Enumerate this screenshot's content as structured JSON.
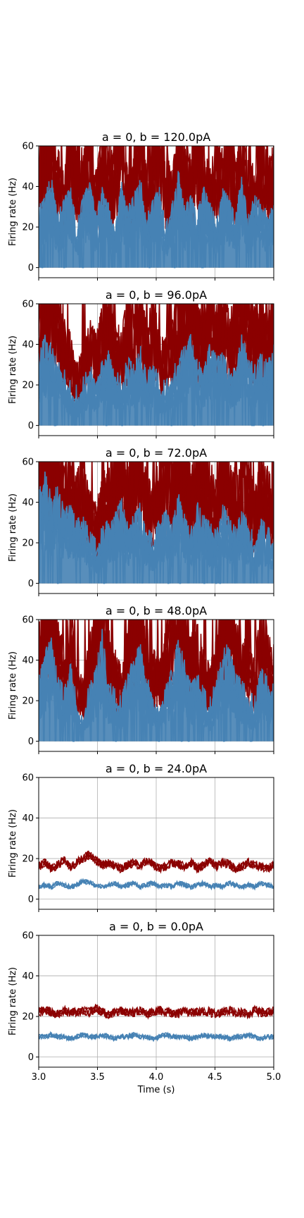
{
  "chart_data": [
    {
      "type": "line",
      "title": "a = 0, b = 120.0pA",
      "ylabel": "Firing rate (Hz)",
      "xlabel": "",
      "xlim": [
        3.0,
        5.0
      ],
      "ylim": [
        -5,
        60
      ],
      "yticks": [
        "0",
        "20",
        "40",
        "60"
      ],
      "grid": true,
      "series": [
        {
          "color": "#8b0000",
          "values": [
            35,
            45,
            60,
            40,
            30,
            55,
            42,
            38,
            60,
            32,
            48,
            36,
            44,
            60,
            30,
            40,
            52,
            34,
            46,
            60,
            38,
            30,
            50,
            42,
            36,
            58,
            40,
            32,
            44,
            38,
            60,
            34,
            46,
            40,
            30,
            52,
            36,
            42
          ]
        },
        {
          "color": "#4682b4",
          "values": [
            18,
            25,
            30,
            15,
            22,
            28,
            10,
            24,
            30,
            16,
            26,
            20,
            12,
            28,
            18,
            24,
            30,
            14,
            22,
            26,
            10,
            20,
            32,
            18,
            24,
            16,
            28,
            20,
            12,
            26,
            22,
            18,
            30,
            14,
            24,
            20,
            16,
            22
          ]
        }
      ]
    },
    {
      "type": "line",
      "title": "a = 0, b = 96.0pA",
      "ylabel": "Firing rate (Hz)",
      "xlabel": "",
      "xlim": [
        3.0,
        5.0
      ],
      "ylim": [
        -5,
        60
      ],
      "yticks": [
        "0",
        "20",
        "40",
        "60"
      ],
      "grid": true,
      "series": [
        {
          "color": "#8b0000",
          "values": [
            40,
            55,
            60,
            45,
            35,
            30,
            20,
            25,
            35,
            30,
            40,
            48,
            36,
            30,
            44,
            38,
            52,
            34,
            42,
            30,
            28,
            36,
            46,
            50,
            60,
            42,
            38,
            55,
            40,
            48,
            36,
            44,
            60,
            42,
            38,
            46,
            40,
            50
          ]
        },
        {
          "color": "#4682b4",
          "values": [
            24,
            30,
            26,
            20,
            16,
            10,
            8,
            12,
            18,
            14,
            20,
            24,
            16,
            12,
            22,
            18,
            26,
            14,
            20,
            12,
            10,
            16,
            22,
            26,
            30,
            20,
            18,
            28,
            22,
            24,
            16,
            20,
            30,
            22,
            18,
            24,
            20,
            26
          ]
        }
      ]
    },
    {
      "type": "line",
      "title": "a = 0, b = 72.0pA",
      "ylabel": "Firing rate (Hz)",
      "xlabel": "",
      "xlim": [
        3.0,
        5.0
      ],
      "ylim": [
        -5,
        60
      ],
      "yticks": [
        "0",
        "20",
        "40",
        "60"
      ],
      "grid": true,
      "series": [
        {
          "color": "#8b0000",
          "values": [
            50,
            60,
            45,
            55,
            40,
            48,
            36,
            44,
            30,
            26,
            34,
            40,
            46,
            52,
            38,
            44,
            50,
            36,
            30,
            42,
            48,
            40,
            56,
            44,
            38,
            50,
            46,
            40,
            34,
            52,
            42,
            36,
            48,
            40,
            30,
            44,
            38,
            34
          ]
        },
        {
          "color": "#4682b4",
          "values": [
            30,
            36,
            28,
            32,
            24,
            26,
            20,
            22,
            14,
            10,
            16,
            20,
            24,
            28,
            18,
            22,
            26,
            16,
            12,
            20,
            24,
            18,
            30,
            22,
            16,
            26,
            22,
            18,
            14,
            28,
            20,
            16,
            24,
            18,
            12,
            20,
            16,
            14
          ]
        }
      ]
    },
    {
      "type": "line",
      "title": "a = 0, b = 48.0pA",
      "ylabel": "Firing rate (Hz)",
      "xlabel": "",
      "xlim": [
        3.0,
        5.0
      ],
      "ylim": [
        -5,
        60
      ],
      "yticks": [
        "0",
        "20",
        "40",
        "60"
      ],
      "grid": true,
      "series": [
        {
          "color": "#8b0000",
          "values": [
            38,
            52,
            60,
            40,
            30,
            46,
            26,
            20,
            34,
            44,
            60,
            36,
            30,
            24,
            42,
            50,
            56,
            38,
            30,
            26,
            36,
            44,
            58,
            48,
            34,
            40,
            30,
            24,
            38,
            52,
            60,
            42,
            36,
            30,
            26,
            44,
            38,
            32
          ]
        },
        {
          "color": "#4682b4",
          "values": [
            20,
            30,
            34,
            22,
            14,
            26,
            10,
            8,
            16,
            24,
            36,
            18,
            14,
            10,
            22,
            28,
            32,
            20,
            14,
            10,
            18,
            24,
            34,
            26,
            16,
            22,
            14,
            10,
            20,
            30,
            34,
            22,
            18,
            14,
            10,
            24,
            20,
            16
          ]
        }
      ]
    },
    {
      "type": "line",
      "title": "a = 0, b = 24.0pA",
      "ylabel": "Firing rate (Hz)",
      "xlabel": "",
      "xlim": [
        3.0,
        5.0
      ],
      "ylim": [
        -5,
        60
      ],
      "yticks": [
        "0",
        "20",
        "40",
        "60"
      ],
      "grid": true,
      "series": [
        {
          "color": "#8b0000",
          "values": [
            16,
            18,
            15,
            17,
            19,
            16,
            18,
            20,
            22,
            19,
            17,
            18,
            16,
            15,
            17,
            18,
            16,
            19,
            17,
            15,
            16,
            18,
            17,
            16,
            18,
            15,
            17,
            19,
            16,
            18,
            17,
            15,
            16,
            18,
            17,
            16,
            15,
            17
          ]
        },
        {
          "color": "#4682b4",
          "values": [
            6,
            7,
            6,
            8,
            7,
            6,
            7,
            9,
            8,
            7,
            6,
            7,
            8,
            6,
            7,
            8,
            6,
            7,
            8,
            6,
            7,
            6,
            8,
            7,
            6,
            7,
            8,
            6,
            7,
            6,
            8,
            7,
            6,
            7,
            6,
            8,
            7,
            6
          ]
        }
      ]
    },
    {
      "type": "line",
      "title": "a = 0, b = 0.0pA",
      "ylabel": "Firing rate (Hz)",
      "xlabel": "Time (s)",
      "xlim": [
        3.0,
        5.0
      ],
      "ylim": [
        -5,
        60
      ],
      "yticks": [
        "0",
        "20",
        "40",
        "60"
      ],
      "xticks": [
        "3.0",
        "3.5",
        "4.0",
        "4.5",
        "5.0"
      ],
      "grid": true,
      "series": [
        {
          "color": "#8b0000",
          "values": [
            22,
            23,
            22,
            21,
            23,
            22,
            22,
            23,
            22,
            24,
            22,
            21,
            22,
            23,
            22,
            22,
            23,
            21,
            22,
            23,
            22,
            22,
            21,
            23,
            22,
            22,
            23,
            22,
            21,
            22,
            23,
            22,
            22,
            21,
            23,
            22,
            22,
            23
          ]
        },
        {
          "color": "#4682b4",
          "values": [
            10,
            10,
            11,
            10,
            10,
            9,
            10,
            11,
            10,
            10,
            11,
            10,
            9,
            10,
            10,
            11,
            10,
            10,
            9,
            10,
            11,
            10,
            10,
            10,
            9,
            10,
            11,
            10,
            10,
            10,
            9,
            10,
            10,
            11,
            10,
            9,
            10,
            10
          ]
        }
      ]
    }
  ]
}
